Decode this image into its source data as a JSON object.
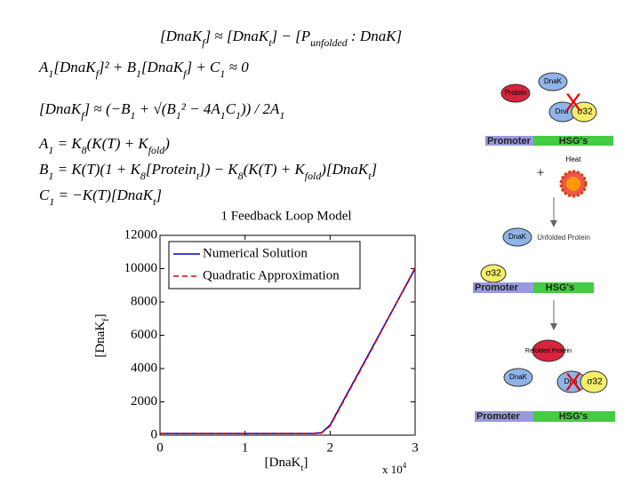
{
  "equations": [
    [
      "[DnaK",
      "f",
      "] ≈ [DnaK",
      "t",
      "] − [P",
      "unfolded",
      " : DnaK]"
    ],
    [
      "A",
      "1",
      "[DnaK",
      "f",
      "]² + B",
      "1",
      "[DnaK",
      "f",
      "] + C",
      "1",
      " ≈ 0"
    ],
    [
      "[DnaK",
      "f",
      "] ≈ (−B",
      "1",
      " + √(B",
      "1",
      "² − 4A",
      "1",
      "C",
      "1",
      ")) / 2A",
      "1"
    ],
    [
      "A",
      "1",
      "  =  K",
      "8",
      "(K(T) + K",
      "fold",
      ")"
    ],
    [
      "B",
      "1",
      "  =  K(T)(1 + K",
      "8",
      "[Protein",
      "t",
      "]) − K",
      "8",
      "(K(T) + K",
      "fold",
      ")[DnaK",
      "t",
      "]"
    ],
    [
      "C",
      "1",
      "  =  −K(T)[DnaK",
      "t",
      "]"
    ]
  ],
  "chart_data": {
    "type": "line",
    "title": "1 Feedback Loop Model",
    "y_label": [
      "[DnaK",
      "f",
      "]"
    ],
    "x_label": [
      "[DnaK",
      "t",
      "]"
    ],
    "x_multiplier": {
      "base": "x 10",
      "exp": "4"
    },
    "x": [
      0,
      0.5,
      1,
      1.5,
      1.8,
      1.9,
      2.0,
      2.5,
      3
    ],
    "series": [
      {
        "name": "Numerical Solution",
        "color": "#0000cc",
        "dash": false,
        "values": [
          100,
          100,
          100,
          100,
          100,
          150,
          600,
          5300,
          10000
        ]
      },
      {
        "name": "Quadratic Approximation",
        "color": "#dd0000",
        "dash": true,
        "values": [
          100,
          100,
          100,
          100,
          100,
          130,
          550,
          5250,
          10050
        ]
      }
    ],
    "xlim": [
      0,
      3
    ],
    "xticks": [
      0,
      1,
      2,
      3
    ],
    "ylim": [
      0,
      12000
    ],
    "yticks": [
      0,
      2000,
      4000,
      6000,
      8000,
      10000,
      12000
    ],
    "legend": "upper left"
  },
  "diagram": {
    "labels": [
      "Protein",
      "DnaK",
      "Dna",
      "σ32",
      "X",
      "Promoter",
      "HSG's",
      "+",
      "Heat",
      "DnaK",
      "Unfolded Protein",
      "σ32",
      "Promoter",
      "HSG's",
      "Refolded Protein",
      "DnaK",
      "Dna",
      "σ32",
      "X",
      "Promoter",
      "HSG's"
    ]
  }
}
